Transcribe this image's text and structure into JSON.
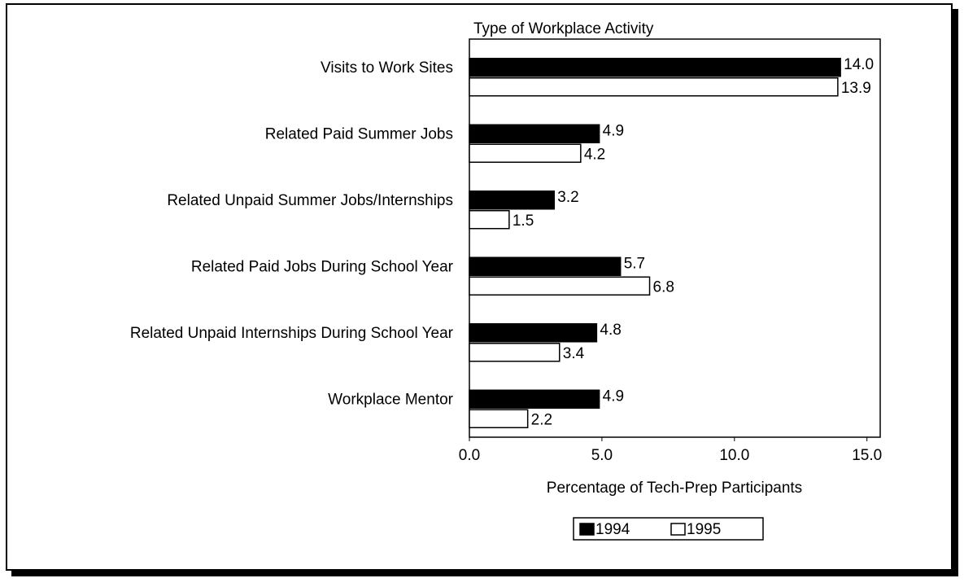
{
  "chart_data": {
    "type": "hbar",
    "title": "Type of Workplace Activity",
    "x_label": "Percentage of Tech-Prep Participants",
    "categories": [
      "Visits to Work Sites",
      "Related Paid Summer Jobs",
      "Related Unpaid Summer Jobs/Internships",
      "Related Paid Jobs During School Year",
      "Related Unpaid Internships During School Year",
      "Workplace Mentor"
    ],
    "series": [
      {
        "name": "1994",
        "color": "#000000",
        "values": [
          14,
          4.9,
          3.2,
          5.7,
          4.8,
          4.9
        ],
        "value_labels": [
          "14.0",
          "4.9",
          "3.2",
          "5.7",
          "4.8",
          "4.9"
        ]
      },
      {
        "name": "1995",
        "color": "#ffffff",
        "values": [
          13.9,
          4.2,
          1.5,
          6.8,
          3.4,
          2.2
        ],
        "value_labels": [
          "13.9",
          "4.2",
          "1.5",
          "6.8",
          "3.4",
          "2.2"
        ]
      }
    ],
    "xlim": [
      0,
      15.5
    ],
    "xticks": [
      {
        "value": 0,
        "label": "0.0"
      },
      {
        "value": 5,
        "label": "5.0"
      },
      {
        "value": 10,
        "label": "10.0"
      },
      {
        "value": 15,
        "label": "15.0"
      }
    ],
    "legend": "bottom"
  }
}
